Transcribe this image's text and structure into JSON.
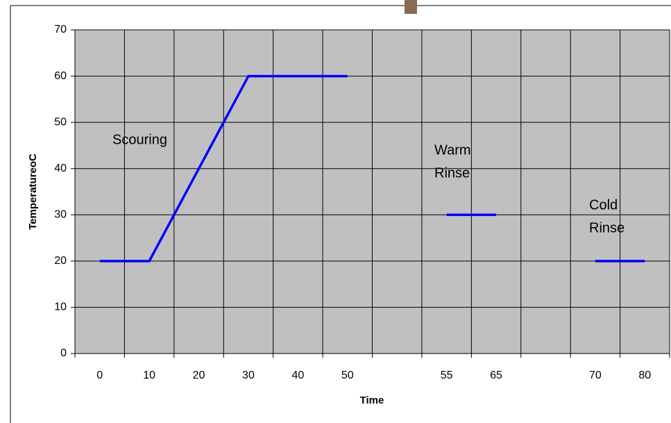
{
  "chart_data": {
    "type": "line",
    "x_label": "Time",
    "y_label": "TemperatureoC",
    "categories": [
      "0",
      "10",
      "20",
      "30",
      "40",
      "50",
      null,
      "55",
      "65",
      null,
      "70",
      "80"
    ],
    "series": [
      {
        "color": "#0000ff",
        "values": [
          20,
          20,
          40,
          60,
          60,
          60,
          null,
          30,
          30,
          null,
          20,
          20
        ]
      }
    ],
    "ylim": [
      0,
      70
    ],
    "yticks": [
      0,
      10,
      20,
      30,
      40,
      50,
      60,
      70
    ],
    "grid": true,
    "annotations": [
      [
        "Scouring"
      ],
      [
        "Warm",
        "Rinse"
      ],
      [
        "Cold",
        "Rinse"
      ]
    ]
  }
}
